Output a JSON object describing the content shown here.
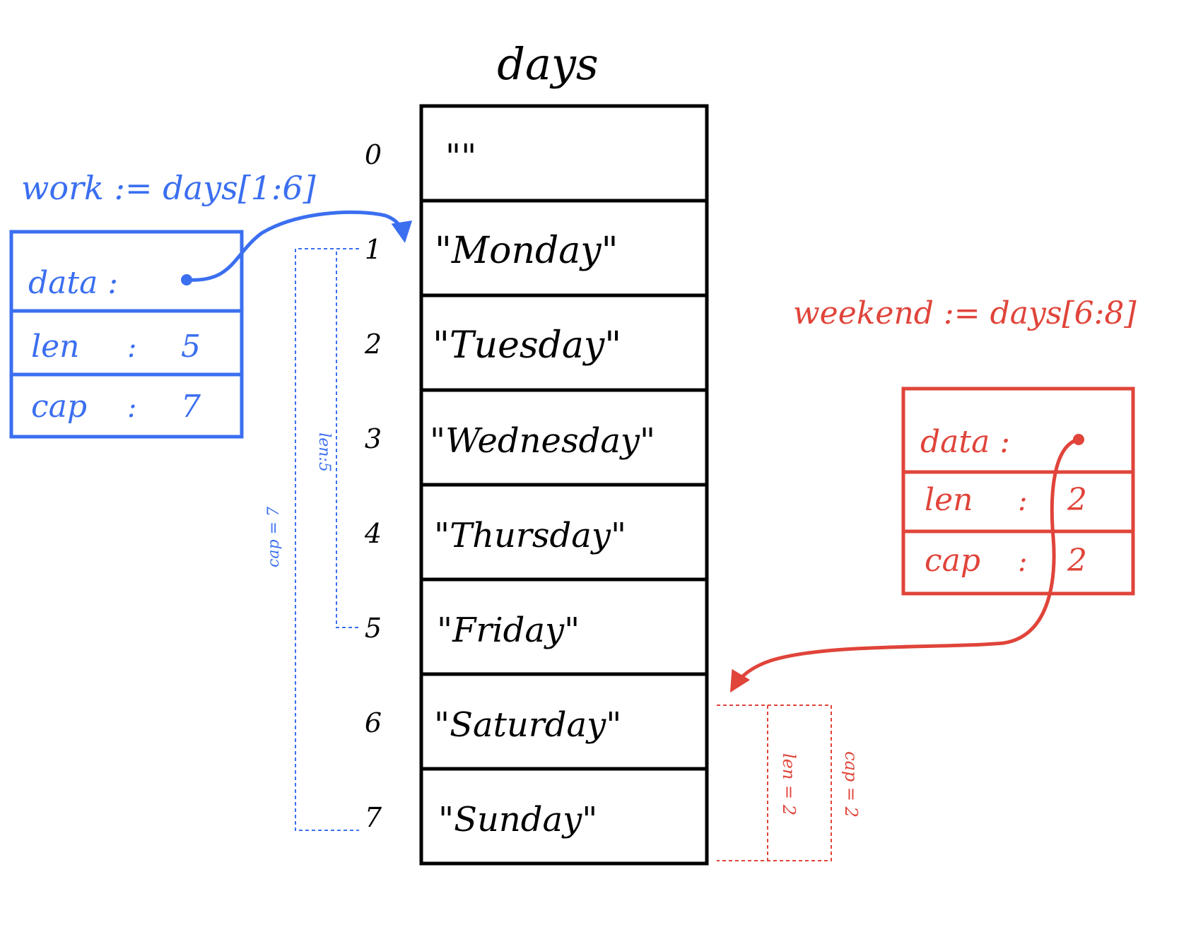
{
  "array": {
    "title": "days",
    "cells": [
      {
        "index": "0",
        "value": "\"\""
      },
      {
        "index": "1",
        "value": "\"Monday\""
      },
      {
        "index": "2",
        "value": "\"Tuesday\""
      },
      {
        "index": "3",
        "value": "\"Wednesday\""
      },
      {
        "index": "4",
        "value": "\"Thursday\""
      },
      {
        "index": "5",
        "value": "\"Friday\""
      },
      {
        "index": "6",
        "value": "\"Saturday\""
      },
      {
        "index": "7",
        "value": "\"Sunday\""
      }
    ]
  },
  "work": {
    "expression": "work := days[1:6]",
    "data_label": "data :",
    "len_label": "len",
    "len_sep": ":",
    "len_value": "5",
    "cap_label": "cap",
    "cap_sep": ":",
    "cap_value": "7",
    "len_bracket": "len:5",
    "cap_bracket": "cap = 7",
    "color": "#3b6ff0"
  },
  "weekend": {
    "expression": "weekend := days[6:8]",
    "data_label": "data :",
    "len_label": "len",
    "len_sep": ":",
    "len_value": "2",
    "cap_label": "cap",
    "cap_sep": ":",
    "cap_value": "2",
    "len_bracket": "len = 2",
    "cap_bracket": "cap = 2",
    "color": "#e0443a"
  }
}
